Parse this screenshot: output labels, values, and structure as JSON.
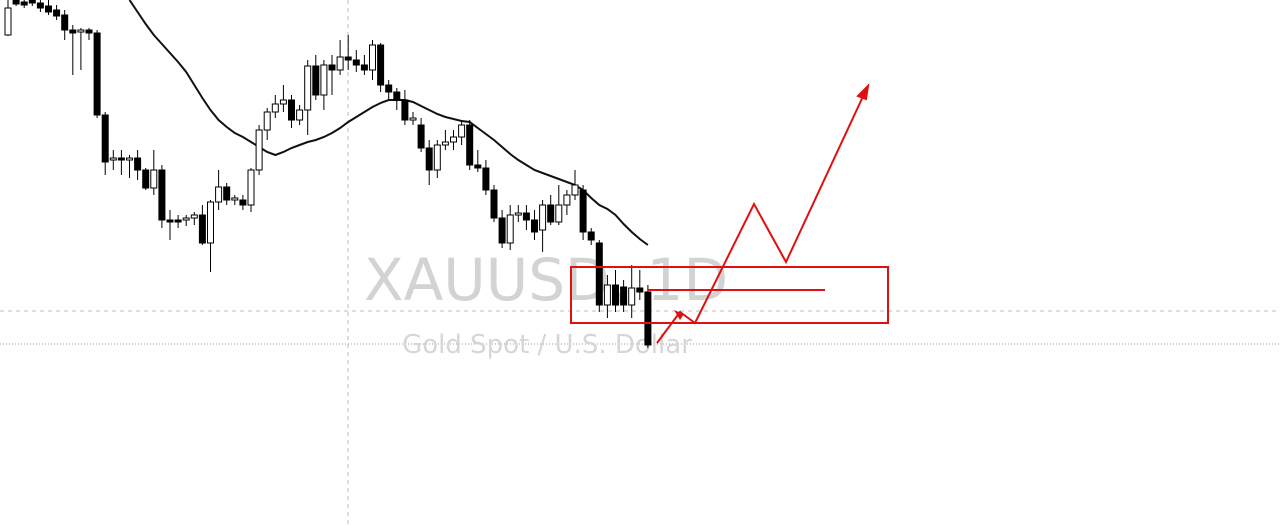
{
  "chart_data": {
    "type": "candlestick",
    "title": "XAUUSD, 1D",
    "subtitle": "Gold Spot / U.S. Dollar",
    "categories": [
      null,
      null,
      null,
      null,
      null,
      null,
      null,
      null,
      null,
      null,
      null,
      null,
      null,
      null,
      null,
      null,
      null,
      null,
      null,
      null,
      null,
      null,
      null,
      null,
      null,
      null,
      null,
      null,
      null,
      null,
      null,
      null,
      null,
      null,
      null,
      null,
      null,
      null,
      null,
      null,
      null,
      null,
      null,
      null,
      null,
      null,
      null,
      null,
      null,
      null,
      null,
      null,
      null,
      null,
      null,
      null,
      null,
      null,
      null,
      null,
      null,
      null,
      null,
      null,
      null,
      null,
      null,
      null,
      null,
      null,
      null,
      null,
      null,
      null,
      null,
      null,
      null,
      null,
      null,
      null
    ],
    "open": [
      490,
      525,
      523,
      525,
      522,
      519,
      515,
      510,
      495,
      493,
      495,
      492,
      410,
      365,
      367,
      365,
      367,
      355,
      337,
      355,
      305,
      305,
      305,
      307,
      310,
      282,
      323,
      338,
      325,
      325,
      320,
      355,
      395,
      413,
      421,
      425,
      405,
      415,
      459,
      430,
      460,
      455,
      468,
      465,
      460,
      455,
      480,
      440,
      433,
      425,
      405,
      400,
      377,
      355,
      380,
      383,
      388,
      400,
      360,
      357,
      335,
      307,
      282,
      310,
      312,
      305,
      295,
      320,
      303,
      320,
      330,
      335,
      293,
      282,
      220,
      240,
      238,
      220,
      237,
      233
    ],
    "high": [
      525,
      525,
      525,
      525,
      525,
      525,
      520,
      515,
      500,
      497,
      497,
      495,
      413,
      375,
      375,
      370,
      375,
      357,
      375,
      360,
      315,
      310,
      310,
      313,
      320,
      325,
      355,
      342,
      330,
      330,
      357,
      400,
      417,
      430,
      440,
      430,
      420,
      465,
      470,
      465,
      470,
      485,
      490,
      475,
      470,
      485,
      482,
      445,
      437,
      435,
      413,
      407,
      385,
      385,
      395,
      395,
      405,
      405,
      375,
      365,
      340,
      315,
      320,
      320,
      320,
      315,
      325,
      330,
      340,
      335,
      355,
      340,
      297,
      285,
      250,
      255,
      245,
      260,
      255,
      240
    ],
    "low": [
      489,
      519,
      517,
      519,
      513,
      510,
      505,
      485,
      450,
      455,
      485,
      407,
      350,
      355,
      350,
      347,
      345,
      335,
      330,
      297,
      285,
      297,
      299,
      300,
      280,
      253,
      315,
      320,
      320,
      315,
      313,
      350,
      385,
      407,
      413,
      397,
      400,
      390,
      425,
      415,
      430,
      450,
      455,
      453,
      450,
      445,
      433,
      425,
      415,
      400,
      400,
      373,
      340,
      347,
      375,
      375,
      380,
      355,
      353,
      330,
      303,
      277,
      275,
      303,
      295,
      285,
      273,
      300,
      300,
      310,
      325,
      285,
      280,
      213,
      207,
      213,
      213,
      207,
      225,
      177
    ],
    "close": [
      517,
      521,
      520,
      522,
      517,
      513,
      509,
      495,
      492,
      495,
      492,
      410,
      363,
      367,
      365,
      367,
      355,
      337,
      355,
      305,
      303,
      303,
      307,
      310,
      282,
      323,
      338,
      325,
      327,
      320,
      355,
      395,
      413,
      421,
      425,
      405,
      415,
      459,
      430,
      460,
      455,
      468,
      465,
      460,
      455,
      480,
      440,
      433,
      425,
      405,
      407,
      377,
      355,
      380,
      383,
      388,
      400,
      360,
      357,
      335,
      307,
      282,
      310,
      312,
      305,
      293,
      320,
      303,
      320,
      330,
      340,
      293,
      285,
      220,
      240,
      220,
      220,
      237,
      233,
      180
    ],
    "up_color": "#ffffff",
    "down_color": "#000000",
    "wick_color": "#000000",
    "overlay": {
      "type": "line",
      "color": "#111111",
      "values": [
        null,
        null,
        null,
        null,
        null,
        null,
        null,
        null,
        null,
        null,
        null,
        null,
        null,
        null,
        null,
        525,
        513,
        501,
        490,
        481,
        472,
        463,
        453,
        440,
        427,
        415,
        405,
        398,
        392,
        388,
        383,
        378,
        373,
        370,
        373,
        377,
        380,
        383,
        385,
        388,
        392,
        397,
        403,
        408,
        413,
        418,
        422,
        425,
        425,
        425,
        423,
        419,
        415,
        411,
        408,
        406,
        404,
        403,
        397,
        391,
        385,
        378,
        371,
        365,
        360,
        355,
        352,
        349,
        346,
        343,
        340,
        335,
        327,
        320,
        316,
        310,
        301,
        293,
        286,
        280
      ]
    },
    "ylim": [
      0,
      525
    ]
  }
}
